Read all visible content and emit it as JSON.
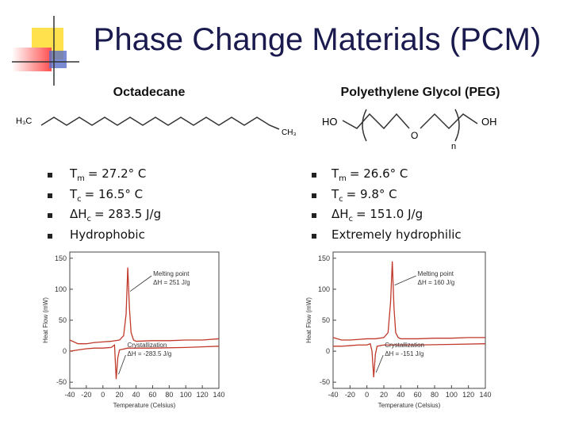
{
  "title": "Phase Change Materials (PCM)",
  "columns": [
    {
      "heading": "Octadecane",
      "structure": {
        "labels": [
          "H₃C",
          "CH₃"
        ]
      },
      "bullets": [
        {
          "main": "T",
          "sub": "m",
          "rest": "= 27.2° C"
        },
        {
          "main": "T",
          "sub": "c",
          "rest": "= 16.5° C"
        },
        {
          "main": "ΔH",
          "sub": "c",
          "rest": "= 283.5 J/g"
        },
        {
          "main": "Hydrophobic"
        }
      ],
      "chart": {
        "type": "line",
        "xlabel": "Temperature (Celsius)",
        "ylabel": "Heat Flow (mW)",
        "xlim": [
          -40,
          140
        ],
        "xticks": [
          -40,
          -20,
          0,
          20,
          40,
          60,
          80,
          100,
          120,
          140
        ],
        "ylim": [
          -60,
          160
        ],
        "yticks": [
          -50,
          0,
          50,
          100,
          150
        ],
        "annotations": [
          "Melting point",
          "ΔH = 251 J/g",
          "Crystallization",
          "ΔH = -283.5 J/g"
        ],
        "series": [
          {
            "color": "#c0392b",
            "x": [
              -40,
              -30,
              -20,
              -10,
              0,
              10,
              20,
              25,
              28,
              30,
              32,
              34,
              37,
              40,
              60,
              80,
              100,
              120,
              140
            ],
            "values": [
              18,
              12,
              12,
              14,
              15,
              16,
              18,
              25,
              60,
              135,
              70,
              30,
              18,
              16,
              17,
              17,
              18,
              18,
              20
            ]
          },
          {
            "color": "#c0392b",
            "x": [
              -40,
              -30,
              -20,
              -10,
              0,
              10,
              14,
              16,
              18,
              20,
              30,
              60,
              100,
              140
            ],
            "values": [
              0,
              2,
              4,
              5,
              5,
              6,
              10,
              -45,
              -10,
              2,
              5,
              5,
              6,
              8
            ]
          }
        ]
      }
    },
    {
      "heading": "Polyethylene Glycol (PEG)",
      "structure": {
        "labels": [
          "HO",
          "O",
          "OH",
          "n"
        ]
      },
      "bullets": [
        {
          "main": "T",
          "sub": "m",
          "rest": "= 26.6° C"
        },
        {
          "main": "T",
          "sub": "c",
          "rest": "= 9.8° C"
        },
        {
          "main": "ΔH",
          "sub": "c",
          "rest": "= 151.0 J/g"
        },
        {
          "main": "Extremely hydrophilic"
        }
      ],
      "chart": {
        "type": "line",
        "xlabel": "Temperature (Celsius)",
        "ylabel": "Heat Flow (mW)",
        "xlim": [
          -40,
          140
        ],
        "xticks": [
          -40,
          -20,
          0,
          20,
          40,
          60,
          80,
          100,
          120,
          140
        ],
        "ylim": [
          -60,
          160
        ],
        "yticks": [
          -50,
          0,
          50,
          100,
          150
        ],
        "annotations": [
          "Melting point",
          "ΔH = 160 J/g",
          "Crystallization",
          "ΔH = -151 J/g"
        ],
        "series": [
          {
            "color": "#c0392b",
            "x": [
              -40,
              -30,
              -20,
              -10,
              0,
              10,
              20,
              25,
              28,
              30,
              32,
              34,
              37,
              40,
              60,
              80,
              100,
              120,
              140
            ],
            "values": [
              22,
              18,
              18,
              19,
              20,
              20,
              22,
              30,
              80,
              145,
              70,
              30,
              22,
              20,
              20,
              21,
              21,
              22,
              22
            ]
          },
          {
            "color": "#c0392b",
            "x": [
              -40,
              -30,
              -20,
              -10,
              0,
              4,
              6,
              8,
              10,
              12,
              20,
              60,
              100,
              140
            ],
            "values": [
              8,
              8,
              9,
              10,
              10,
              12,
              0,
              -42,
              -5,
              8,
              10,
              10,
              11,
              12
            ]
          }
        ]
      }
    }
  ]
}
